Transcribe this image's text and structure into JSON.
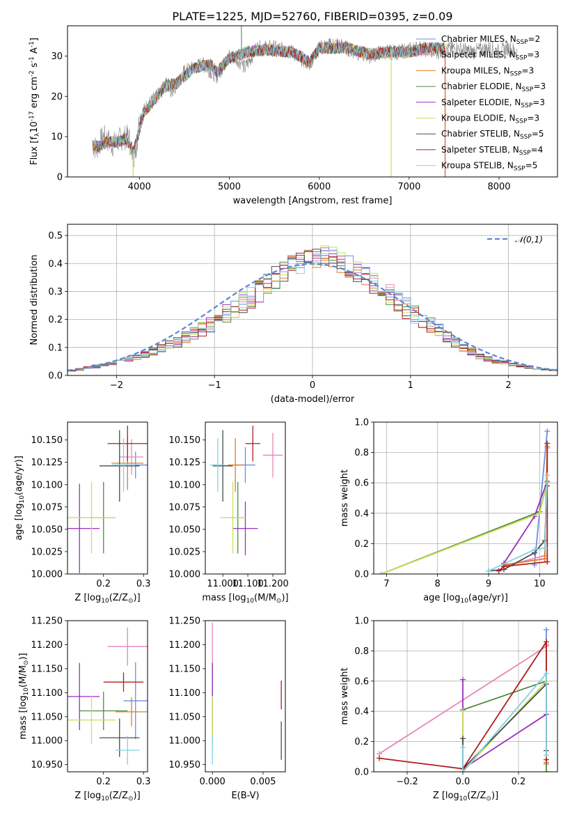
{
  "figure_title": "PLATE=1225, MJD=52760, FIBERID=0395, z=0.09",
  "models": [
    {
      "label": "Chabrier MILES, N$_{SSP}$=2",
      "color": "#6b8ed8"
    },
    {
      "label": "Salpeter MILES, N$_{SSP}$=3",
      "color": "#e486b8"
    },
    {
      "label": "Kroupa MILES, N$_{SSP}$=3",
      "color": "#e07b20"
    },
    {
      "label": "Chabrier ELODIE, N$_{SSP}$=3",
      "color": "#4f8a3c"
    },
    {
      "label": "Salpeter ELODIE, N$_{SSP}$=3",
      "color": "#9a2dbb"
    },
    {
      "label": "Kroupa ELODIE, N$_{SSP}$=3",
      "color": "#c8e05a"
    },
    {
      "label": "Chabrier STELIB, N$_{SSP}$=5",
      "color": "#4a4a4a"
    },
    {
      "label": "Salpeter STELIB, N$_{SSP}$=4",
      "color": "#b01c1c"
    },
    {
      "label": "Kroupa STELIB, N$_{SSP}$=5",
      "color": "#7fd3e0"
    }
  ],
  "chart_data": [
    {
      "id": "spectrum",
      "type": "line",
      "xlabel": "wavelength [Angstrom, rest frame]",
      "ylabel": "Flux [$f_\\lambda$10$^{-17}$ erg cm$^{-2}$ s$^{-1}$ A$^{-1}$]",
      "xlim": [
        3200,
        8650
      ],
      "ylim": [
        0,
        37.5
      ],
      "xticks": [
        4000,
        5000,
        6000,
        7000,
        8000
      ],
      "yticks": [
        0,
        10,
        20,
        30
      ],
      "data_color": "#808080",
      "data_points": [
        [
          3480,
          8
        ],
        [
          3520,
          7
        ],
        [
          3600,
          10
        ],
        [
          3700,
          8
        ],
        [
          3800,
          9.5
        ],
        [
          3880,
          10
        ],
        [
          3930,
          5
        ],
        [
          3970,
          8
        ],
        [
          4000,
          15
        ],
        [
          4100,
          18
        ],
        [
          4200,
          20
        ],
        [
          4300,
          23
        ],
        [
          4350,
          21
        ],
        [
          4500,
          26
        ],
        [
          4700,
          28
        ],
        [
          4860,
          25
        ],
        [
          5000,
          30
        ],
        [
          5100,
          29
        ],
        [
          5175,
          27
        ],
        [
          5300,
          32
        ],
        [
          5500,
          32
        ],
        [
          5700,
          31
        ],
        [
          5890,
          28
        ],
        [
          6000,
          32
        ],
        [
          6200,
          33
        ],
        [
          6400,
          31
        ],
        [
          6563,
          30
        ],
        [
          6700,
          31
        ],
        [
          6900,
          31
        ],
        [
          7100,
          32
        ],
        [
          7300,
          31
        ],
        [
          7500,
          32
        ],
        [
          7700,
          31
        ],
        [
          7900,
          32
        ],
        [
          8000,
          31
        ],
        [
          8100,
          32
        ],
        [
          8200,
          31
        ]
      ],
      "model_points": [
        [
          3480,
          8
        ],
        [
          3560,
          7.5
        ],
        [
          3650,
          9
        ],
        [
          3750,
          8.5
        ],
        [
          3850,
          9.5
        ],
        [
          3930,
          6
        ],
        [
          3970,
          9
        ],
        [
          4050,
          16
        ],
        [
          4200,
          20
        ],
        [
          4300,
          23
        ],
        [
          4400,
          23
        ],
        [
          4600,
          27
        ],
        [
          4800,
          28
        ],
        [
          4860,
          26
        ],
        [
          5000,
          29.5
        ],
        [
          5200,
          31
        ],
        [
          5400,
          31.5
        ],
        [
          5700,
          31
        ],
        [
          5890,
          28.5
        ],
        [
          6000,
          32
        ],
        [
          6300,
          32
        ],
        [
          6563,
          30.5
        ],
        [
          6800,
          31
        ],
        [
          7000,
          31
        ],
        [
          7200,
          32
        ],
        [
          7400,
          32
        ]
      ],
      "model_end_x": 7400,
      "dropouts": [
        3930,
        6800,
        7400
      ]
    },
    {
      "id": "residual_histogram",
      "type": "line",
      "xlabel": "(data-model)/error",
      "ylabel": "Normed distribution",
      "xlim": [
        -2.5,
        2.5
      ],
      "ylim": [
        0,
        0.54
      ],
      "xticks": [
        -2,
        -1,
        0,
        1,
        2
      ],
      "yticks": [
        0.0,
        0.1,
        0.2,
        0.3,
        0.4,
        0.5
      ],
      "reference_curve": {
        "label": "$\\mathcal{N}(0,1)$",
        "color": "#5b84d6"
      },
      "bin_edges": [
        -2.5,
        2.5
      ],
      "bin_width": 0.1,
      "base_values": [
        0.018,
        0.022,
        0.028,
        0.032,
        0.038,
        0.045,
        0.05,
        0.058,
        0.065,
        0.075,
        0.085,
        0.095,
        0.108,
        0.12,
        0.135,
        0.15,
        0.165,
        0.18,
        0.2,
        0.22,
        0.24,
        0.26,
        0.28,
        0.3,
        0.33,
        0.35,
        0.37,
        0.39,
        0.4,
        0.41,
        0.42,
        0.43,
        0.42,
        0.4,
        0.39,
        0.37,
        0.35,
        0.33,
        0.31,
        0.29,
        0.26,
        0.24,
        0.22,
        0.2,
        0.18,
        0.16,
        0.14,
        0.12,
        0.1,
        0.085,
        0.07,
        0.06,
        0.05,
        0.045,
        0.04,
        0.035,
        0.03,
        0.025,
        0.022,
        0.02
      ]
    },
    {
      "id": "age_vs_Z",
      "type": "scatter",
      "xlabel": "Z [log$_{10}$(Z/Z$_\\odot$)]",
      "ylabel": "age  [log$_{10}$(age/yr)]",
      "xlim": [
        0.11,
        0.31
      ],
      "ylim": [
        10.0,
        10.17
      ],
      "xticks": [
        0.2,
        0.3
      ],
      "yticks": [
        10.0,
        10.025,
        10.05,
        10.075,
        10.1,
        10.125,
        10.15
      ],
      "points": [
        {
          "model": 0,
          "x": 0.28,
          "y": 10.122,
          "xerr": 0.03,
          "yerr": 0.015
        },
        {
          "model": 1,
          "x": 0.27,
          "y": 10.131,
          "xerr": 0.03,
          "yerr": 0.02
        },
        {
          "model": 2,
          "x": 0.26,
          "y": 10.124,
          "xerr": 0.04,
          "yerr": 0.03
        },
        {
          "model": 3,
          "x": 0.2,
          "y": 10.063,
          "xerr": 0.03,
          "yerr": 0.04
        },
        {
          "model": 4,
          "x": 0.14,
          "y": 10.051,
          "xerr": 0.05,
          "yerr": 0.05
        },
        {
          "model": 5,
          "x": 0.17,
          "y": 10.063,
          "xerr": 0.06,
          "yerr": 0.04
        },
        {
          "model": 6,
          "x": 0.24,
          "y": 10.121,
          "xerr": 0.05,
          "yerr": 0.04
        },
        {
          "model": 7,
          "x": 0.26,
          "y": 10.146,
          "xerr": 0.05,
          "yerr": 0.02
        },
        {
          "model": 8,
          "x": 0.25,
          "y": 10.122,
          "xerr": 0.03,
          "yerr": 0.03
        }
      ]
    },
    {
      "id": "age_vs_mass",
      "type": "scatter",
      "xlabel": "mass [log$_{10}$(M/M$_\\odot$)]",
      "ylabel": "",
      "xlim": [
        10.93,
        11.25
      ],
      "ylim": [
        10.0,
        10.17
      ],
      "xticks": [
        11.0,
        11.1,
        11.2
      ],
      "yticks": [
        10.0,
        10.025,
        10.05,
        10.075,
        10.1,
        10.125,
        10.15
      ],
      "points": [
        {
          "model": 0,
          "x": 11.09,
          "y": 10.122,
          "xerr": 0.04,
          "yerr": 0.02
        },
        {
          "model": 1,
          "x": 11.2,
          "y": 10.133,
          "xerr": 0.04,
          "yerr": 0.025
        },
        {
          "model": 2,
          "x": 11.05,
          "y": 10.122,
          "xerr": 0.03,
          "yerr": 0.03
        },
        {
          "model": 3,
          "x": 11.06,
          "y": 10.063,
          "xerr": 0.03,
          "yerr": 0.04
        },
        {
          "model": 4,
          "x": 11.09,
          "y": 10.051,
          "xerr": 0.05,
          "yerr": 0.03
        },
        {
          "model": 5,
          "x": 11.04,
          "y": 10.063,
          "xerr": 0.05,
          "yerr": 0.04
        },
        {
          "model": 6,
          "x": 11.0,
          "y": 10.121,
          "xerr": 0.04,
          "yerr": 0.04
        },
        {
          "model": 7,
          "x": 11.12,
          "y": 10.146,
          "xerr": 0.03,
          "yerr": 0.02
        },
        {
          "model": 8,
          "x": 10.98,
          "y": 10.122,
          "xerr": 0.03,
          "yerr": 0.03
        }
      ]
    },
    {
      "id": "massweight_vs_age",
      "type": "line",
      "xlabel": "age  [log$_{10}$(age/yr)]",
      "ylabel": "mass weight",
      "xlim": [
        6.75,
        10.35
      ],
      "ylim": [
        0.0,
        1.0
      ],
      "xticks": [
        7,
        8,
        9,
        10
      ],
      "yticks": [
        0.0,
        0.2,
        0.4,
        0.6,
        0.8,
        1.0
      ],
      "series": [
        {
          "model": 0,
          "x": [
            9.9,
            10.15
          ],
          "y": [
            0.06,
            0.94
          ]
        },
        {
          "model": 1,
          "x": [
            9.3,
            10.1,
            10.15
          ],
          "y": [
            0.05,
            0.12,
            0.83
          ]
        },
        {
          "model": 2,
          "x": [
            9.3,
            10.1,
            10.15
          ],
          "y": [
            0.06,
            0.1,
            0.84
          ]
        },
        {
          "model": 3,
          "x": [
            6.9,
            10.0,
            10.15
          ],
          "y": [
            0.0,
            0.41,
            0.6
          ]
        },
        {
          "model": 4,
          "x": [
            9.3,
            9.9,
            10.15
          ],
          "y": [
            0.07,
            0.38,
            0.61
          ]
        },
        {
          "model": 5,
          "x": [
            6.9,
            10.0,
            10.15
          ],
          "y": [
            0.0,
            0.4,
            0.6
          ]
        },
        {
          "model": 6,
          "x": [
            9.0,
            9.3,
            9.9,
            10.1,
            10.15
          ],
          "y": [
            0.02,
            0.03,
            0.14,
            0.22,
            0.58
          ]
        },
        {
          "model": 7,
          "x": [
            9.2,
            9.3,
            10.15,
            10.15
          ],
          "y": [
            0.02,
            0.05,
            0.08,
            0.86
          ]
        },
        {
          "model": 8,
          "x": [
            9.0,
            9.9,
            10.1,
            10.15
          ],
          "y": [
            0.02,
            0.16,
            0.17,
            0.65
          ]
        }
      ]
    },
    {
      "id": "mass_vs_Z",
      "type": "scatter",
      "xlabel": "Z [log$_{10}$(Z/Z$_\\odot$)]",
      "ylabel": "mass [log$_{10}$(M/M$_\\odot$)]",
      "xlim": [
        0.11,
        0.31
      ],
      "ylim": [
        10.935,
        11.25
      ],
      "xticks": [
        0.2,
        0.3
      ],
      "yticks": [
        10.95,
        11.0,
        11.05,
        11.1,
        11.15,
        11.2,
        11.25
      ],
      "points": [
        {
          "model": 0,
          "x": 0.28,
          "y": 11.083,
          "xerr": 0.03,
          "yerr": 0.08
        },
        {
          "model": 1,
          "x": 0.26,
          "y": 11.196,
          "xerr": 0.05,
          "yerr": 0.04
        },
        {
          "model": 2,
          "x": 0.27,
          "y": 11.06,
          "xerr": 0.04,
          "yerr": 0.03
        },
        {
          "model": 3,
          "x": 0.2,
          "y": 11.062,
          "xerr": 0.06,
          "yerr": 0.04
        },
        {
          "model": 4,
          "x": 0.14,
          "y": 11.092,
          "xerr": 0.05,
          "yerr": 0.07
        },
        {
          "model": 5,
          "x": 0.17,
          "y": 11.043,
          "xerr": 0.06,
          "yerr": 0.05
        },
        {
          "model": 6,
          "x": 0.24,
          "y": 11.006,
          "xerr": 0.05,
          "yerr": 0.04
        },
        {
          "model": 7,
          "x": 0.25,
          "y": 11.122,
          "xerr": 0.05,
          "yerr": 0.02
        },
        {
          "model": 8,
          "x": 0.26,
          "y": 10.98,
          "xerr": 0.03,
          "yerr": 0.03
        }
      ]
    },
    {
      "id": "mass_vs_EBV",
      "type": "scatter",
      "xlabel": "E(B-V)",
      "ylabel": "",
      "xlim": [
        -0.0007,
        0.0072
      ],
      "ylim": [
        10.935,
        11.25
      ],
      "xticks": [
        0.0,
        0.005
      ],
      "yticks": [
        10.95,
        11.0,
        11.05,
        11.1,
        11.15,
        11.2,
        11.25
      ],
      "points": [
        {
          "model": 0,
          "x": 0.0,
          "y": 11.083,
          "xerr": 0.0,
          "yerr": 0.08
        },
        {
          "model": 1,
          "x": 0.0,
          "y": 11.196,
          "xerr": 0.0,
          "yerr": 0.05
        },
        {
          "model": 2,
          "x": 0.0,
          "y": 11.06,
          "xerr": 0.0,
          "yerr": 0.03
        },
        {
          "model": 3,
          "x": 0.0,
          "y": 11.062,
          "xerr": 0.0,
          "yerr": 0.05
        },
        {
          "model": 4,
          "x": 0.0,
          "y": 11.092,
          "xerr": 0.0,
          "yerr": 0.07
        },
        {
          "model": 5,
          "x": 0.0,
          "y": 11.043,
          "xerr": 0.0,
          "yerr": 0.05
        },
        {
          "model": 6,
          "x": 0.0068,
          "y": 11.0,
          "xerr": 0.0,
          "yerr": 0.04
        },
        {
          "model": 7,
          "x": 0.0068,
          "y": 11.095,
          "xerr": 0.0,
          "yerr": 0.03
        },
        {
          "model": 8,
          "x": 0.0,
          "y": 10.98,
          "xerr": 0.0,
          "yerr": 0.03
        }
      ]
    },
    {
      "id": "massweight_vs_Z",
      "type": "line",
      "xlabel": "Z [log$_{10}$(Z/Z$_\\odot$)]",
      "ylabel": "mass weight",
      "xlim": [
        -0.32,
        0.34
      ],
      "ylim": [
        0.0,
        1.0
      ],
      "xticks": [
        -0.2,
        0.0,
        0.2
      ],
      "yticks": [
        0.0,
        0.2,
        0.4,
        0.6,
        0.8,
        1.0
      ],
      "series": [
        {
          "model": 0,
          "x": [
            0.3,
            0.3
          ],
          "y": [
            0.06,
            0.94
          ]
        },
        {
          "model": 1,
          "x": [
            -0.3,
            0.3,
            0.3
          ],
          "y": [
            0.12,
            0.83,
            0.05
          ]
        },
        {
          "model": 2,
          "x": [
            0.3,
            0.3
          ],
          "y": [
            0.06,
            0.84
          ]
        },
        {
          "model": 3,
          "x": [
            0.0,
            0.3,
            0.3
          ],
          "y": [
            0.41,
            0.6,
            0.0
          ]
        },
        {
          "model": 4,
          "x": [
            0.0,
            0.0,
            0.3
          ],
          "y": [
            0.61,
            0.02,
            0.38
          ]
        },
        {
          "model": 5,
          "x": [
            0.0,
            0.0,
            0.3
          ],
          "y": [
            0.4,
            0.0,
            0.6
          ]
        },
        {
          "model": 6,
          "x": [
            0.0,
            0.0,
            0.3,
            0.3
          ],
          "y": [
            0.22,
            0.02,
            0.58,
            0.14
          ]
        },
        {
          "model": 7,
          "x": [
            -0.3,
            0.0,
            0.3,
            0.3
          ],
          "y": [
            0.09,
            0.02,
            0.86,
            0.08
          ]
        },
        {
          "model": 8,
          "x": [
            0.0,
            0.0,
            0.3,
            0.3
          ],
          "y": [
            0.16,
            0.0,
            0.65,
            0.11
          ]
        }
      ]
    }
  ]
}
